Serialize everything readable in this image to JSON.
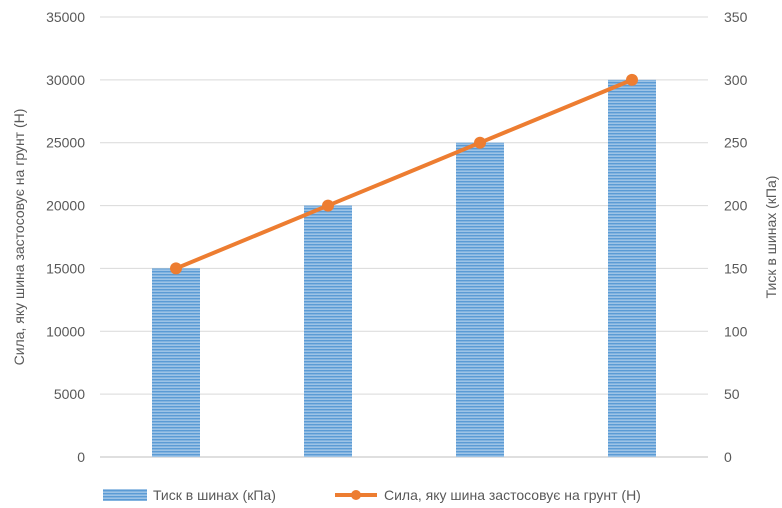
{
  "chart_data": {
    "type": "bar+line",
    "categories": [
      "",
      "",
      "",
      ""
    ],
    "series": [
      {
        "name": "Тиск в шинах (кПа)",
        "type": "bar",
        "axis": "right",
        "values": [
          150,
          200,
          250,
          300
        ],
        "color": "#5B9BD5"
      },
      {
        "name": "Сила, яку шина застосовує на грунт (Н)",
        "type": "line",
        "axis": "left",
        "values": [
          15000,
          20000,
          25000,
          30000
        ],
        "color": "#ED7D31"
      }
    ],
    "y_left": {
      "label": "Сила, яку шина застосовує на грунт (Н)",
      "range": [
        0,
        35000
      ],
      "ticks": [
        "0",
        "5000",
        "10000",
        "15000",
        "20000",
        "25000",
        "30000",
        "35000"
      ]
    },
    "y_right": {
      "label": "Тиск в шинах (кПа)",
      "range": [
        0,
        350
      ],
      "ticks": [
        "0",
        "50",
        "100",
        "150",
        "200",
        "250",
        "300",
        "350"
      ]
    },
    "grid": true,
    "legend_position": "bottom"
  }
}
